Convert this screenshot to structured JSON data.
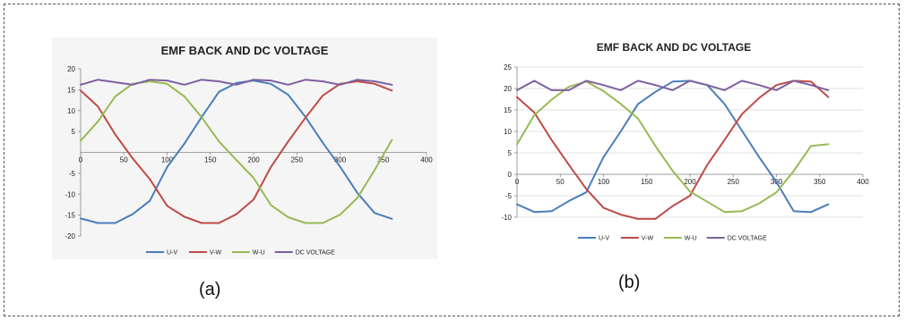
{
  "captions": {
    "a": "(a)",
    "b": "(b)"
  },
  "colors": {
    "U-V": "#4a7ebb",
    "V-W": "#be4b48",
    "W-U": "#98b954",
    "DC VOLTAGE": "#7d60a0"
  },
  "chart_data": [
    {
      "type": "line",
      "title": "EMF BACK AND DC VOLTAGE",
      "xlabel": "",
      "ylabel": "",
      "xlim": [
        0,
        400
      ],
      "ylim": [
        -20,
        20
      ],
      "x_ticks": [
        0,
        50,
        100,
        150,
        200,
        250,
        300,
        350,
        400
      ],
      "y_ticks": [
        20,
        15,
        10,
        5,
        -5,
        -10,
        -15,
        -20
      ],
      "y_tick_labels": [
        "20",
        "15",
        "10",
        "5",
        "-5",
        "-10",
        "-15",
        "-20"
      ],
      "legend": "bottom",
      "grid": false,
      "x": [
        0,
        20,
        40,
        60,
        80,
        100,
        120,
        140,
        160,
        180,
        200,
        220,
        240,
        260,
        280,
        300,
        320,
        340,
        360
      ],
      "series": [
        {
          "name": "U-V",
          "values": [
            -15.8,
            -16.9,
            -16.9,
            -14.8,
            -11.6,
            -3.5,
            2.1,
            8.5,
            14.5,
            16.6,
            17.2,
            16.4,
            13.8,
            8.5,
            2.3,
            -3.4,
            -9.7,
            -14.5,
            -15.9
          ]
        },
        {
          "name": "V-W",
          "values": [
            14.8,
            11.0,
            4.3,
            -1.4,
            -6.4,
            -12.8,
            -15.4,
            -16.9,
            -16.9,
            -14.8,
            -11.3,
            -3.5,
            2.6,
            8.3,
            13.6,
            16.4,
            17.0,
            16.4,
            14.8
          ]
        },
        {
          "name": "W-U",
          "values": [
            2.8,
            7.4,
            13.4,
            16.4,
            17.0,
            16.4,
            13.4,
            8.4,
            2.6,
            -1.8,
            -6.1,
            -12.6,
            -15.5,
            -16.9,
            -16.9,
            -14.9,
            -10.9,
            -4.2,
            3.0
          ]
        },
        {
          "name": "DC VOLTAGE",
          "values": [
            16.2,
            17.4,
            16.8,
            16.2,
            17.4,
            17.2,
            16.2,
            17.4,
            17.0,
            16.2,
            17.4,
            17.2,
            16.2,
            17.4,
            17.0,
            16.2,
            17.4,
            17.0,
            16.2
          ]
        }
      ]
    },
    {
      "type": "line",
      "title": "EMF BACK AND DC VOLTAGE",
      "xlabel": "",
      "ylabel": "",
      "xlim": [
        0,
        400
      ],
      "ylim": [
        -10,
        25
      ],
      "x_ticks": [
        0,
        50,
        100,
        150,
        200,
        250,
        300,
        350,
        400
      ],
      "y_ticks": [
        25,
        20,
        15,
        10,
        5,
        0,
        -5,
        -10
      ],
      "y_tick_labels": [
        "25",
        "20",
        "15",
        "10",
        "5",
        "0",
        "-5",
        "-10"
      ],
      "legend": "bottom",
      "grid": true,
      "x": [
        0,
        20,
        40,
        60,
        80,
        100,
        120,
        140,
        160,
        180,
        200,
        220,
        240,
        260,
        280,
        300,
        320,
        340,
        360
      ],
      "series": [
        {
          "name": "U-V",
          "values": [
            -7.0,
            -8.8,
            -8.6,
            -6.2,
            -4.2,
            4.0,
            10.0,
            16.4,
            19.2,
            21.6,
            21.8,
            20.8,
            16.4,
            10.2,
            4.0,
            -1.8,
            -8.6,
            -8.8,
            -7.0
          ]
        },
        {
          "name": "V-W",
          "values": [
            18.0,
            14.4,
            8.0,
            2.2,
            -3.4,
            -7.8,
            -9.4,
            -10.4,
            -10.4,
            -7.4,
            -5.0,
            2.2,
            8.0,
            14.0,
            17.8,
            20.8,
            21.8,
            21.6,
            18.0
          ]
        },
        {
          "name": "W-U",
          "values": [
            7.0,
            13.8,
            17.4,
            20.4,
            21.6,
            19.4,
            16.4,
            13.0,
            6.6,
            0.8,
            -4.0,
            -6.4,
            -8.8,
            -8.6,
            -6.8,
            -4.2,
            0.8,
            6.6,
            7.0
          ]
        },
        {
          "name": "DC VOLTAGE",
          "values": [
            19.6,
            21.8,
            19.6,
            19.6,
            21.8,
            20.8,
            19.6,
            21.8,
            20.8,
            19.6,
            21.8,
            20.8,
            19.6,
            21.8,
            20.8,
            19.6,
            21.8,
            20.8,
            19.6
          ]
        }
      ]
    }
  ]
}
